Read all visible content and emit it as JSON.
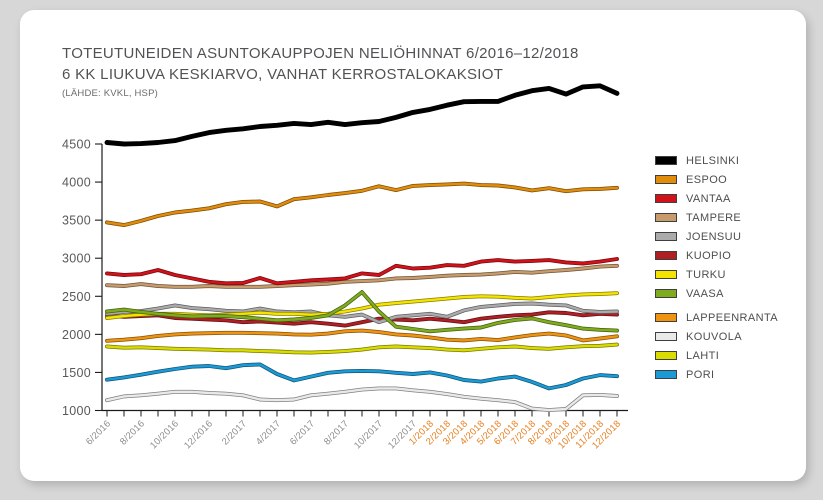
{
  "header": {
    "title": "TOTEUTUNEIDEN ASUNTOKAUPPOJEN NELIÖHINNAT 6/2016–12/2018",
    "subtitle": "6 KK LIUKUVA KESKIARVO, VANHAT KERROSTALOKAKSIOT",
    "source": "(LÄHDE: KVKL, HSP)"
  },
  "chart_data": {
    "type": "line",
    "title": "TOTEUTUNEIDEN ASUNTOKAUPPOJEN NELIÖHINNAT 6/2016–12/2018",
    "subtitle": "6 KK LIUKUVA KESKIARVO, VANHAT KERROSTALOKAKSIOT",
    "xlabel": "",
    "ylabel": "",
    "grid": false,
    "legend_position": "right",
    "ylim": [
      1000,
      4500
    ],
    "y_ticks": [
      1000,
      1500,
      2000,
      2500,
      3000,
      3500,
      4000,
      4500
    ],
    "x": [
      "6/2016",
      "7/2016",
      "8/2016",
      "9/2016",
      "10/2016",
      "11/2016",
      "12/2016",
      "1/2017",
      "2/2017",
      "3/2017",
      "4/2017",
      "5/2017",
      "6/2017",
      "7/2017",
      "8/2017",
      "9/2017",
      "10/2017",
      "11/2017",
      "12/2017",
      "1/2018",
      "2/2018",
      "3/2018",
      "4/2018",
      "5/2018",
      "6/2018",
      "7/2018",
      "8/2018",
      "9/2018",
      "10/2018",
      "11/2018",
      "12/2018"
    ],
    "x_tick_labels": [
      {
        "index": 0,
        "label": "6/2016",
        "color": "#8e8e8e"
      },
      {
        "index": 2,
        "label": "8/2016",
        "color": "#8e8e8e"
      },
      {
        "index": 4,
        "label": "10/2016",
        "color": "#8e8e8e"
      },
      {
        "index": 6,
        "label": "12/2016",
        "color": "#8e8e8e"
      },
      {
        "index": 8,
        "label": "2/2017",
        "color": "#8e8e8e"
      },
      {
        "index": 10,
        "label": "4/2017",
        "color": "#8e8e8e"
      },
      {
        "index": 12,
        "label": "6/2017",
        "color": "#8e8e8e"
      },
      {
        "index": 14,
        "label": "8/2017",
        "color": "#8e8e8e"
      },
      {
        "index": 16,
        "label": "10/2017",
        "color": "#8e8e8e"
      },
      {
        "index": 18,
        "label": "12/2017",
        "color": "#8e8e8e"
      },
      {
        "index": 19,
        "label": "1/2018",
        "color": "#e87f1f"
      },
      {
        "index": 20,
        "label": "2/2018",
        "color": "#e87f1f"
      },
      {
        "index": 21,
        "label": "3/2018",
        "color": "#e87f1f"
      },
      {
        "index": 22,
        "label": "4/2018",
        "color": "#e87f1f"
      },
      {
        "index": 23,
        "label": "5/2018",
        "color": "#e87f1f"
      },
      {
        "index": 24,
        "label": "6/2018",
        "color": "#e87f1f"
      },
      {
        "index": 25,
        "label": "7/2018",
        "color": "#e87f1f"
      },
      {
        "index": 26,
        "label": "8/2018",
        "color": "#e87f1f"
      },
      {
        "index": 27,
        "label": "9/2018",
        "color": "#e87f1f"
      },
      {
        "index": 28,
        "label": "10/2018",
        "color": "#e87f1f"
      },
      {
        "index": 29,
        "label": "11/2018",
        "color": "#e87f1f"
      },
      {
        "index": 30,
        "label": "12/2018",
        "color": "#e87f1f"
      }
    ],
    "series": [
      {
        "name": "HELSINKI",
        "color": "#000000",
        "values": [
          4520,
          4500,
          4505,
          4520,
          4545,
          4600,
          4650,
          4680,
          4700,
          4730,
          4745,
          4770,
          4755,
          4785,
          4755,
          4780,
          4795,
          4850,
          4915,
          4955,
          5010,
          5055,
          5060,
          5060,
          5140,
          5200,
          5230,
          5155,
          5250,
          5265,
          5165
        ]
      },
      {
        "name": "ESPOO",
        "color": "#e28c0c",
        "values": [
          3470,
          3435,
          3490,
          3555,
          3600,
          3625,
          3655,
          3710,
          3740,
          3745,
          3680,
          3775,
          3800,
          3830,
          3855,
          3885,
          3945,
          3895,
          3950,
          3960,
          3970,
          3980,
          3960,
          3955,
          3930,
          3890,
          3920,
          3880,
          3905,
          3910,
          3925
        ]
      },
      {
        "name": "VANTAA",
        "color": "#d2121a",
        "values": [
          2800,
          2780,
          2790,
          2845,
          2780,
          2735,
          2690,
          2670,
          2675,
          2740,
          2670,
          2690,
          2710,
          2720,
          2735,
          2800,
          2780,
          2900,
          2865,
          2875,
          2910,
          2900,
          2955,
          2975,
          2955,
          2965,
          2975,
          2945,
          2930,
          2955,
          2990
        ]
      },
      {
        "name": "TAMPERE",
        "color": "#c79b6b",
        "values": [
          2645,
          2635,
          2660,
          2635,
          2625,
          2625,
          2635,
          2625,
          2625,
          2625,
          2635,
          2645,
          2655,
          2665,
          2690,
          2700,
          2710,
          2735,
          2740,
          2755,
          2770,
          2780,
          2785,
          2800,
          2820,
          2810,
          2830,
          2845,
          2865,
          2890,
          2900
        ]
      },
      {
        "name": "JOENSUU",
        "color": "#ababab",
        "values": [
          2270,
          2295,
          2305,
          2340,
          2380,
          2345,
          2330,
          2310,
          2300,
          2340,
          2300,
          2290,
          2300,
          2250,
          2230,
          2260,
          2160,
          2230,
          2250,
          2270,
          2230,
          2315,
          2360,
          2380,
          2400,
          2405,
          2390,
          2380,
          2310,
          2295,
          2300
        ]
      },
      {
        "name": "KUOPIO",
        "color": "#af1f24",
        "values": [
          2240,
          2230,
          2240,
          2250,
          2215,
          2205,
          2195,
          2185,
          2160,
          2170,
          2155,
          2140,
          2160,
          2140,
          2115,
          2160,
          2205,
          2195,
          2185,
          2205,
          2185,
          2160,
          2205,
          2230,
          2250,
          2260,
          2290,
          2280,
          2250,
          2270,
          2260
        ]
      },
      {
        "name": "TURKU",
        "color": "#f5e400",
        "values": [
          2215,
          2240,
          2258,
          2270,
          2270,
          2258,
          2250,
          2258,
          2270,
          2285,
          2270,
          2270,
          2258,
          2270,
          2300,
          2340,
          2390,
          2410,
          2430,
          2450,
          2470,
          2490,
          2500,
          2495,
          2480,
          2470,
          2490,
          2510,
          2525,
          2530,
          2540
        ]
      },
      {
        "name": "VAASA",
        "color": "#7fac1f",
        "values": [
          2300,
          2325,
          2295,
          2270,
          2250,
          2235,
          2240,
          2240,
          2225,
          2205,
          2185,
          2195,
          2215,
          2250,
          2380,
          2555,
          2300,
          2100,
          2070,
          2040,
          2060,
          2075,
          2090,
          2150,
          2190,
          2210,
          2160,
          2120,
          2075,
          2060,
          2050
        ]
      },
      {
        "name": "LAPPEENRANTA",
        "color": "#ee9411",
        "values": [
          1915,
          1930,
          1950,
          1980,
          2000,
          2010,
          2015,
          2020,
          2020,
          2015,
          2010,
          2000,
          1995,
          2010,
          2040,
          2050,
          2030,
          2000,
          1985,
          1960,
          1930,
          1920,
          1940,
          1925,
          1960,
          1990,
          2010,
          1985,
          1920,
          1945,
          1975
        ]
      },
      {
        "name": "KOUVOLA",
        "color": "#e9e9e9",
        "values": [
          1135,
          1185,
          1200,
          1220,
          1245,
          1245,
          1230,
          1220,
          1200,
          1145,
          1135,
          1145,
          1200,
          1220,
          1245,
          1275,
          1290,
          1290,
          1265,
          1245,
          1215,
          1180,
          1155,
          1135,
          1110,
          1025,
          1005,
          1020,
          1200,
          1205,
          1190
        ]
      },
      {
        "name": "LAHTI",
        "color": "#dadc00",
        "values": [
          1840,
          1825,
          1830,
          1820,
          1810,
          1805,
          1800,
          1790,
          1790,
          1780,
          1775,
          1765,
          1760,
          1770,
          1780,
          1800,
          1830,
          1840,
          1830,
          1820,
          1800,
          1790,
          1810,
          1830,
          1840,
          1820,
          1810,
          1830,
          1845,
          1850,
          1865
        ]
      },
      {
        "name": "PORI",
        "color": "#1c9ad6",
        "values": [
          1405,
          1435,
          1470,
          1510,
          1545,
          1575,
          1585,
          1555,
          1595,
          1605,
          1480,
          1395,
          1445,
          1495,
          1515,
          1520,
          1515,
          1495,
          1480,
          1500,
          1460,
          1400,
          1380,
          1420,
          1445,
          1375,
          1290,
          1335,
          1420,
          1465,
          1450
        ]
      }
    ]
  }
}
